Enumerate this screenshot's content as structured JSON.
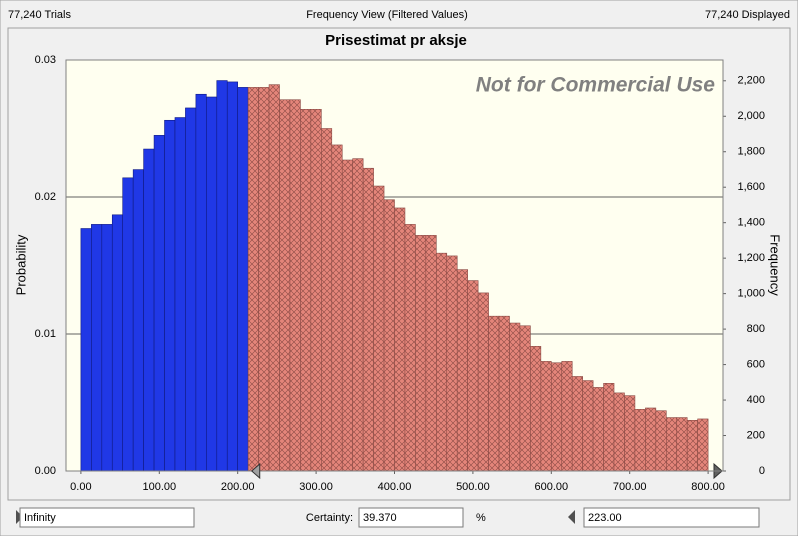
{
  "header": {
    "left": "77,240 Trials",
    "center": "Frequency View (Filtered Values)",
    "right": "77,240 Displayed"
  },
  "chart_data": {
    "type": "histogram",
    "title": "Prisestimat pr aksje",
    "watermark": "Not for Commercial Use",
    "ylabel": "Probability",
    "y2label": "Frequency",
    "bins": [
      0,
      13.33,
      26.67,
      40,
      53.33,
      66.67,
      80,
      93.33,
      106.67,
      120,
      133.33,
      146.67,
      160,
      173.33,
      186.67,
      200,
      213.33,
      226.67,
      240,
      253.33,
      266.67,
      280,
      293.33,
      306.67,
      320,
      333.33,
      346.67,
      360,
      373.33,
      386.67,
      400,
      413.33,
      426.67,
      440,
      453.33,
      466.67,
      480,
      493.33,
      506.67,
      520,
      533.33,
      546.67,
      560,
      573.33,
      586.67,
      600,
      613.33,
      626.67,
      640,
      653.33,
      666.67,
      680,
      693.33,
      706.67,
      720,
      733.33,
      746.67,
      760,
      773.33,
      786.67,
      800
    ],
    "values": [
      0.0177,
      0.018,
      0.018,
      0.0187,
      0.0214,
      0.022,
      0.0235,
      0.0245,
      0.0256,
      0.0258,
      0.0265,
      0.0275,
      0.0273,
      0.0285,
      0.0284,
      0.028,
      0.028,
      0.028,
      0.0282,
      0.0271,
      0.0271,
      0.0264,
      0.0264,
      0.025,
      0.0238,
      0.0227,
      0.0228,
      0.0221,
      0.0208,
      0.0198,
      0.0192,
      0.018,
      0.0172,
      0.0172,
      0.0159,
      0.0157,
      0.0147,
      0.0139,
      0.013,
      0.0113,
      0.0113,
      0.0108,
      0.0106,
      0.0091,
      0.008,
      0.0079,
      0.008,
      0.0069,
      0.0066,
      0.0061,
      0.0064,
      0.0057,
      0.0055,
      0.0045,
      0.0046,
      0.0044,
      0.0039,
      0.0039,
      0.0037,
      0.0038
    ],
    "selected_color": "#2038e6",
    "unselected_color": "#e4857a",
    "xlim": [
      -19,
      819
    ],
    "xticks": [
      {
        "value": 0,
        "label": "0.00"
      },
      {
        "value": 100,
        "label": "100.00"
      },
      {
        "value": 200,
        "label": "200.00"
      },
      {
        "value": 300,
        "label": "300.00"
      },
      {
        "value": 400,
        "label": "400.00"
      },
      {
        "value": 500,
        "label": "500.00"
      },
      {
        "value": 600,
        "label": "600.00"
      },
      {
        "value": 700,
        "label": "700.00"
      },
      {
        "value": 800,
        "label": "800.00"
      }
    ],
    "ylim": [
      0,
      0.03
    ],
    "yticks": [
      {
        "value": 0,
        "label": "0.00"
      },
      {
        "value": 0.01,
        "label": "0.01"
      },
      {
        "value": 0.02,
        "label": "0.02"
      },
      {
        "value": 0.03,
        "label": "0.03"
      }
    ],
    "y2lim": [
      0,
      2317.2
    ],
    "y2ticks": [
      0,
      200,
      400,
      600,
      800,
      {
        "value": 1000,
        "label": "1,000"
      },
      {
        "value": 1200,
        "label": "1,200"
      },
      {
        "value": 1400,
        "label": "1,400"
      },
      {
        "value": 1600,
        "label": "1,600"
      },
      {
        "value": 1800,
        "label": "1,800"
      },
      {
        "value": 2000,
        "label": "2,000"
      },
      {
        "value": 2200,
        "label": "2,200"
      }
    ],
    "grid": true,
    "lower_bound": "Infinity",
    "certainty_label": "Certainty:",
    "certainty": {
      "value": 39.37,
      "label": "39.370"
    },
    "certainty_unit": "%",
    "upper_bound": {
      "value": 223,
      "label": "223.00"
    }
  }
}
